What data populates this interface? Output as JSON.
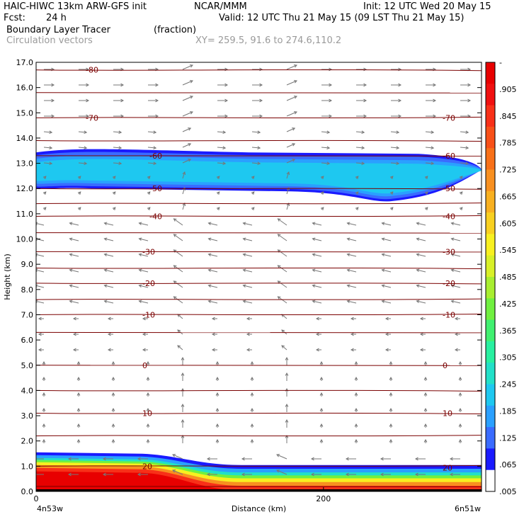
{
  "header": {
    "model": "HAIC-HIWC 13km ARW-GFS init",
    "org": "NCAR/MMM",
    "init": "Init: 12 UTC Wed 20 May 15",
    "fcst_label": "Fcst:",
    "fcst_value": "24 h",
    "valid": "Valid: 12 UTC Thu 21 May 15 (09 LST Thu 21 May 15)",
    "field_name": "Boundary Layer Tracer",
    "field_units": "(fraction)",
    "vectors_label": "Circulation vectors",
    "xy_label": "XY= 259.5, 91.6 to 274.6,110.2"
  },
  "colors": {
    "contour_line": "#7a0000",
    "vector": "#777777",
    "tracer_scale": [
      "#ffffff",
      "#1a1aff",
      "#3a6bff",
      "#2aa0ff",
      "#1ec8f0",
      "#22e0c8",
      "#28f0a0",
      "#40f070",
      "#70f040",
      "#a8ee30",
      "#d8f028",
      "#f8f020",
      "#f8d020",
      "#f8b020",
      "#f89020",
      "#f87018",
      "#f85018",
      "#f83018",
      "#f01010",
      "#e80000"
    ]
  },
  "chart_data": {
    "type": "contour cross-section",
    "ylabel": "Height (km)",
    "xlabel": "Distance (km)",
    "ylim": [
      0,
      17
    ],
    "yticks": [
      "0.0",
      "1.0",
      "2.0",
      "3.0",
      "4.0",
      "5.0",
      "6.0",
      "7.0",
      "8.0",
      "9.0",
      "10.0",
      "11.0",
      "12.0",
      "13.0",
      "14.0",
      "15.0",
      "16.0",
      "17.0"
    ],
    "xlim": [
      0,
      310
    ],
    "xticks": [
      {
        "value": 0,
        "label": "0"
      },
      {
        "value": 200,
        "label": "200"
      }
    ],
    "x_endpoints": {
      "left": "4n53w",
      "right": "6n51w"
    },
    "temperature_contours": [
      {
        "label": "-80",
        "height_km": 16.7
      },
      {
        "label": "-70",
        "height_km": 14.8
      },
      {
        "label": "-60",
        "height_km": 13.3
      },
      {
        "label": "-50",
        "height_km": 12.0
      },
      {
        "label": "-40",
        "height_km": 10.9
      },
      {
        "label": "-30",
        "height_km": 9.5
      },
      {
        "label": "-20",
        "height_km": 8.25
      },
      {
        "label": "-10",
        "height_km": 7.0
      },
      {
        "label": "0",
        "height_km": 5.0
      },
      {
        "label": "10",
        "height_km": 3.1
      },
      {
        "label": "20",
        "height_km": 1.0
      }
    ],
    "extra_contour_heights_km": [
      15.8,
      13.9,
      11.4,
      10.25,
      8.85,
      7.6,
      6.3,
      4.0,
      2.2,
      0.2
    ],
    "tracer_layers": {
      "upper_layer_km": [
        12.0,
        13.6
      ],
      "boundary_layer_top_km": 1.55
    },
    "colorbar": {
      "labels": [
        "-",
        ".905",
        ".845",
        ".785",
        ".725",
        ".665",
        ".605",
        ".545",
        ".485",
        ".425",
        ".365",
        ".305",
        ".245",
        ".185",
        ".125",
        ".065",
        ".005"
      ]
    }
  }
}
